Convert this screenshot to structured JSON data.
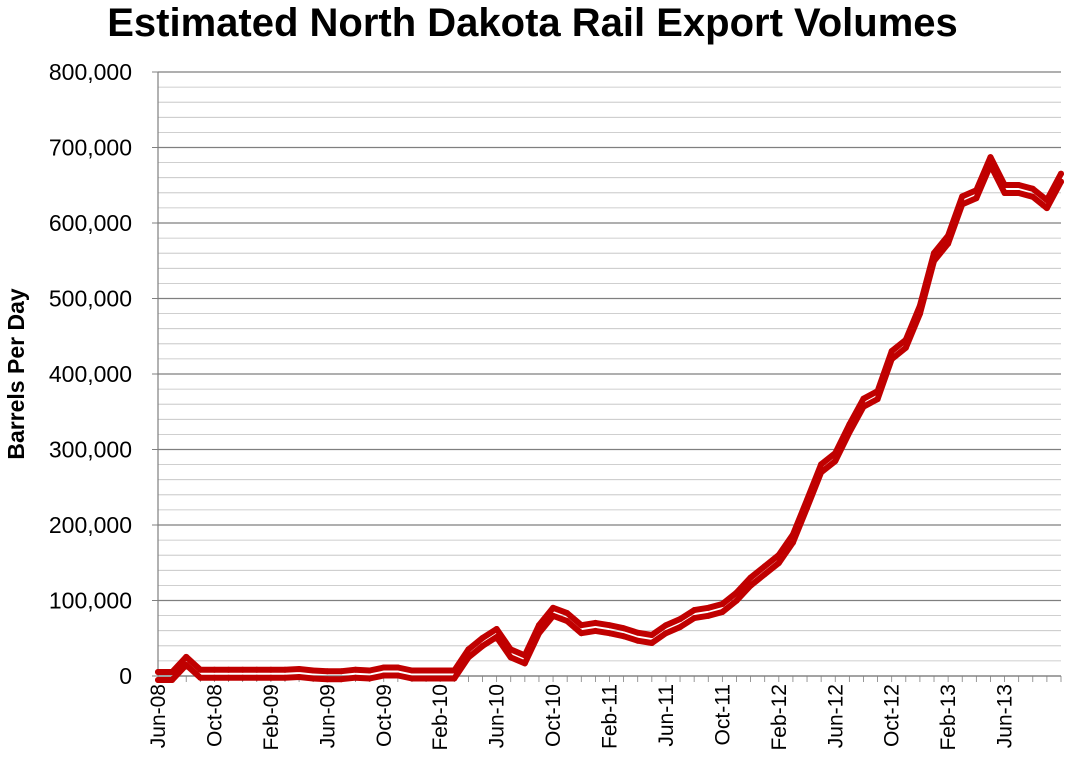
{
  "chart_data": {
    "type": "line",
    "title": "Estimated North Dakota Rail Export Volumes",
    "xlabel": "",
    "ylabel": "Barrels Per Day",
    "ylim": [
      0,
      800000
    ],
    "grid": true,
    "legend": "none",
    "y_ticks": [
      "0",
      "100,000",
      "200,000",
      "300,000",
      "400,000",
      "500,000",
      "600,000",
      "700,000",
      "800,000"
    ],
    "x_ticks": [
      "Jun-08",
      "Oct-08",
      "Feb-09",
      "Jun-09",
      "Oct-09",
      "Feb-10",
      "Jun-10",
      "Oct-10",
      "Feb-11",
      "Jun-11",
      "Oct-11",
      "Feb-12",
      "Jun-12",
      "Oct-12",
      "Feb-13",
      "Jun-13"
    ],
    "x_start": "Jun-08",
    "line_color": "#c00000",
    "series": [
      {
        "values": [
          0,
          0,
          20000,
          3000,
          3000,
          3000,
          3000,
          3000,
          3000,
          3000,
          4000,
          2000,
          1000,
          1000,
          3000,
          2000,
          6000,
          6000,
          2000,
          2000,
          2000,
          2000,
          30000,
          45000,
          57000,
          30000,
          22000,
          62000,
          85000,
          78000,
          62000,
          65000,
          62000,
          58000,
          52000,
          49000,
          62000,
          70000,
          82000,
          85000,
          90000,
          105000,
          125000,
          140000,
          155000,
          182000,
          228000,
          275000,
          290000,
          328000,
          362000,
          372000,
          425000,
          440000,
          485000,
          555000,
          578000,
          630000,
          638000,
          682000,
          645000,
          645000,
          640000,
          625000,
          660000
        ]
      },
      {
        "values": [
          0,
          0,
          20000,
          3000,
          3000,
          3000,
          3000,
          3000,
          3000,
          3000,
          4000,
          2000,
          1000,
          1000,
          3000,
          2000,
          6000,
          6000,
          2000,
          2000,
          2000,
          2000,
          30000,
          45000,
          57000,
          30000,
          22000,
          62000,
          85000,
          78000,
          62000,
          65000,
          62000,
          58000,
          52000,
          49000,
          62000,
          70000,
          82000,
          85000,
          90000,
          105000,
          125000,
          140000,
          155000,
          182000,
          228000,
          275000,
          290000,
          328000,
          362000,
          372000,
          425000,
          440000,
          485000,
          555000,
          578000,
          630000,
          638000,
          682000,
          645000,
          645000,
          640000,
          625000,
          660000
        ]
      }
    ]
  }
}
